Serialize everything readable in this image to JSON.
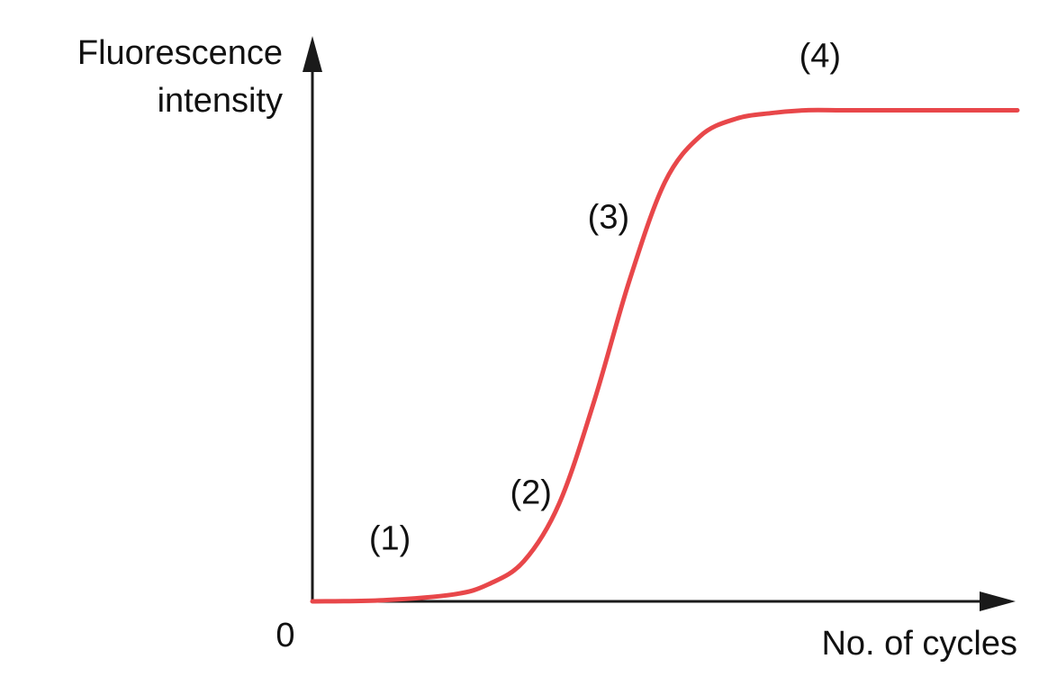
{
  "chart_data": {
    "type": "line",
    "ylabel": [
      "Fluorescence",
      "intensity"
    ],
    "xlabel": "No. of cycles",
    "origin_label": "0",
    "x_range": [
      0,
      100
    ],
    "y_range": [
      0,
      100
    ],
    "grid": false,
    "legend": "none",
    "axis_color": "#1a1a1a",
    "series": [
      {
        "color": "#e8474a",
        "x": [
          0,
          10,
          20,
          25,
          30,
          35,
          40,
          45,
          50,
          55,
          60,
          65,
          70,
          75,
          80,
          90,
          100
        ],
        "y": [
          0,
          0.2,
          1.2,
          3,
          7,
          17,
          35,
          56,
          73,
          81,
          84,
          85,
          85.5,
          85.5,
          85.5,
          85.5,
          85.5
        ]
      }
    ],
    "annotations": [
      {
        "text": "(1)",
        "x": 11,
        "y": 9
      },
      {
        "text": "(2)",
        "x": 31,
        "y": 17
      },
      {
        "text": "(3)",
        "x": 42,
        "y": 65
      },
      {
        "text": "(4)",
        "x": 72,
        "y": 93
      }
    ]
  }
}
